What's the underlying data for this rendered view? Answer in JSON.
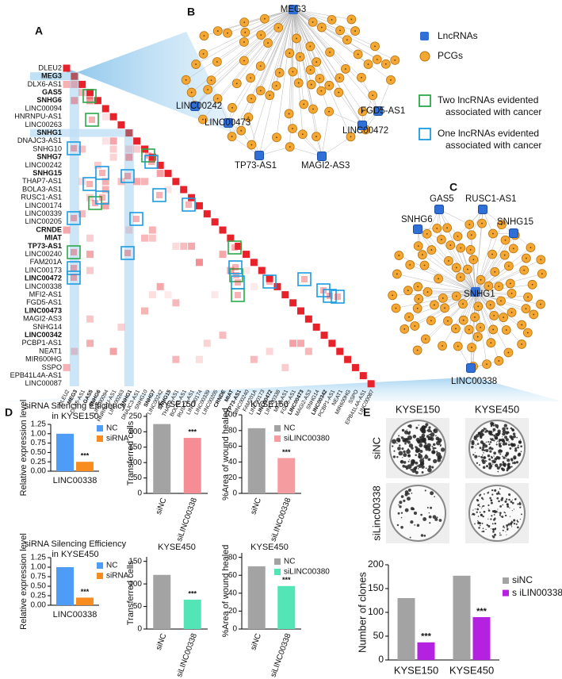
{
  "panels": {
    "A": {
      "label": "A",
      "rows": [
        {
          "name": "DLEU2",
          "bold": false
        },
        {
          "name": "MEG3",
          "bold": true
        },
        {
          "name": "DLX6-AS1",
          "bold": false
        },
        {
          "name": "GAS5",
          "bold": true
        },
        {
          "name": "SNHG6",
          "bold": true
        },
        {
          "name": "LINC00094",
          "bold": false
        },
        {
          "name": "HNRNPU-AS1",
          "bold": false
        },
        {
          "name": "LINC00263",
          "bold": false
        },
        {
          "name": "SNHG1",
          "bold": true
        },
        {
          "name": "DNAJC3-AS1",
          "bold": false
        },
        {
          "name": "SNHG10",
          "bold": false
        },
        {
          "name": "SNHG7",
          "bold": true
        },
        {
          "name": "LINC00242",
          "bold": false
        },
        {
          "name": "SNHG15",
          "bold": true
        },
        {
          "name": "THAP7-AS1",
          "bold": false
        },
        {
          "name": "BOLA3-AS1",
          "bold": false
        },
        {
          "name": "RUSC1-AS1",
          "bold": false
        },
        {
          "name": "LINC00174",
          "bold": false
        },
        {
          "name": "LINC00339",
          "bold": false
        },
        {
          "name": "LINC00205",
          "bold": false
        },
        {
          "name": "CRNDE",
          "bold": true
        },
        {
          "name": "MIAT",
          "bold": true
        },
        {
          "name": "TP73-AS1",
          "bold": true
        },
        {
          "name": "LINC00240",
          "bold": false
        },
        {
          "name": "FAM201A",
          "bold": false
        },
        {
          "name": "LINC00173",
          "bold": false
        },
        {
          "name": "LINC00472",
          "bold": true
        },
        {
          "name": "LINC00338",
          "bold": false
        },
        {
          "name": "MFI2-AS1",
          "bold": false
        },
        {
          "name": "FGD5-AS1",
          "bold": false
        },
        {
          "name": "LINC00473",
          "bold": true
        },
        {
          "name": "MAGI2-AS3",
          "bold": false
        },
        {
          "name": "SNHG14",
          "bold": false
        },
        {
          "name": "LINC00342",
          "bold": true
        },
        {
          "name": "PCBP1-AS1",
          "bold": false
        },
        {
          "name": "NEAT1",
          "bold": false
        },
        {
          "name": "MIR600HG",
          "bold": false
        },
        {
          "name": "SSPO",
          "bold": false
        },
        {
          "name": "EPB41L4A-AS1",
          "bold": false
        },
        {
          "name": "LINC00087",
          "bold": false
        }
      ]
    },
    "B": {
      "label": "B",
      "center": "MEG3",
      "hubs": [
        "LINC00242",
        "LINC00473",
        "TP73-AS1",
        "MAGI2-AS3",
        "FGD5-AS1",
        "LINC00472"
      ],
      "legend": [
        "LncRNAs",
        "PCGs"
      ],
      "cancer_legend": [
        [
          "Two lncRNAs evidented",
          "associated with cancer"
        ],
        [
          "One lncRNAs evidented",
          "associated with cancer"
        ]
      ]
    },
    "C": {
      "label": "C",
      "center": "SNHG1",
      "hubs": [
        "SNHG6",
        "GAS5",
        "RUSC1-AS1",
        "SNHG15",
        "LINC00338"
      ]
    },
    "D": {
      "label": "D"
    },
    "E": {
      "label": "E",
      "columns": [
        "KYSE150",
        "KYSE450"
      ],
      "rows": [
        "siNC",
        "siLinc00338"
      ]
    }
  },
  "chart_data": [
    {
      "type": "bar",
      "title": [
        "siRNA Silencing Efficiency",
        "in KYSE150"
      ],
      "ylabel": "Relative expression level",
      "categories": [
        "LINC00338"
      ],
      "series": [
        {
          "name": "NC",
          "color": "#4f9cf6",
          "values": [
            1.0
          ]
        },
        {
          "name": "siRNA",
          "color": "#f98c1e",
          "values": [
            0.25
          ]
        }
      ],
      "dodge": true,
      "legend": true,
      "rotate_labels": false,
      "annotations": [
        "***"
      ],
      "ylim": [
        0,
        1.25
      ],
      "yticks": [
        {
          "value": 0,
          "label": "0.00"
        },
        {
          "value": 0.25,
          "label": "0.25"
        },
        {
          "value": 0.5,
          "label": "0.50"
        },
        {
          "value": 0.75,
          "label": "0.75"
        },
        {
          "value": 1,
          "label": "1.00"
        },
        {
          "value": 1.25,
          "label": "1.25"
        }
      ]
    },
    {
      "type": "bar",
      "title": [
        "KYSE150"
      ],
      "ylabel": "Transferred cells",
      "categories": [
        "siNC",
        "siLINC00338"
      ],
      "values": [
        225,
        180
      ],
      "colors": [
        "#a3a3a3",
        "#f58e94"
      ],
      "rotate_labels": true,
      "annotations": [
        "***"
      ],
      "ylim": [
        0,
        260
      ],
      "yticks": [
        0,
        50,
        100,
        150,
        200,
        250
      ]
    },
    {
      "type": "bar",
      "title": [
        "KYSE150"
      ],
      "ylabel": "%Area of wound healed",
      "categories": [
        "siNC",
        "siLINC00338"
      ],
      "series": [
        {
          "name": "NC",
          "color": "#a3a3a3",
          "values": [
            83,
            null
          ]
        },
        {
          "name": "siLINC00380",
          "color": "#f59ca1",
          "values": [
            null,
            45
          ]
        }
      ],
      "dodge": false,
      "legend": true,
      "rotate_labels": true,
      "annotations": [
        "***"
      ],
      "ylim": [
        0,
        100
      ],
      "yticks": [
        0,
        20,
        40,
        60,
        80,
        100
      ]
    },
    {
      "type": "bar",
      "title": [
        "siRNA Silencing Efficiency",
        "in KYSE450"
      ],
      "ylabel": "Relative expression level",
      "categories": [
        "LINC00338"
      ],
      "series": [
        {
          "name": "NC",
          "color": "#4f9cf6",
          "values": [
            1.0
          ]
        },
        {
          "name": "siRNA",
          "color": "#f98c1e",
          "values": [
            0.2
          ]
        }
      ],
      "dodge": true,
      "legend": true,
      "rotate_labels": false,
      "annotations": [
        "***"
      ],
      "ylim": [
        0,
        1.25
      ],
      "yticks": [
        {
          "value": 0,
          "label": "0.00"
        },
        {
          "value": 0.25,
          "label": "0.25"
        },
        {
          "value": 0.5,
          "label": "0.50"
        },
        {
          "value": 0.75,
          "label": "0.75"
        },
        {
          "value": 1,
          "label": "1.00"
        },
        {
          "value": 1.25,
          "label": "1.25"
        }
      ]
    },
    {
      "type": "bar",
      "title": [
        "KYSE450"
      ],
      "ylabel": "Transferred cells",
      "categories": [
        "siNC",
        "siLINC00338"
      ],
      "values": [
        120,
        65
      ],
      "colors": [
        "#a3a3a3",
        "#53e5b5"
      ],
      "rotate_labels": true,
      "annotations": [
        "***"
      ],
      "ylim": [
        0,
        160
      ],
      "yticks": [
        0,
        50,
        100,
        150
      ]
    },
    {
      "type": "bar",
      "title": [
        "KYSE450"
      ],
      "ylabel": "%Area of wound healed",
      "categories": [
        "siNC",
        "siLINC00338"
      ],
      "series": [
        {
          "name": "NC",
          "color": "#a3a3a3",
          "values": [
            70,
            null
          ]
        },
        {
          "name": "siLINC00380",
          "color": "#53e5b5",
          "values": [
            null,
            48
          ]
        }
      ],
      "dodge": false,
      "legend": true,
      "rotate_labels": true,
      "annotations": [
        "***"
      ],
      "ylim": [
        0,
        85
      ],
      "yticks": [
        0,
        20,
        40,
        60,
        80
      ]
    },
    {
      "type": "bar",
      "ylabel": "Number of clones",
      "categories": [
        "KYSE150",
        "KYSE450"
      ],
      "series": [
        {
          "name": "siNC",
          "color": "#a3a3a3",
          "values": [
            130,
            177
          ]
        },
        {
          "name": "s iLIN00338",
          "color": "#b421e0",
          "values": [
            37,
            90
          ]
        }
      ],
      "dodge": true,
      "legend": true,
      "rotate_labels": false,
      "annotations": [
        "***",
        "***"
      ],
      "ylim": [
        0,
        200
      ],
      "yticks": [
        0,
        50,
        100,
        150,
        200
      ]
    }
  ]
}
